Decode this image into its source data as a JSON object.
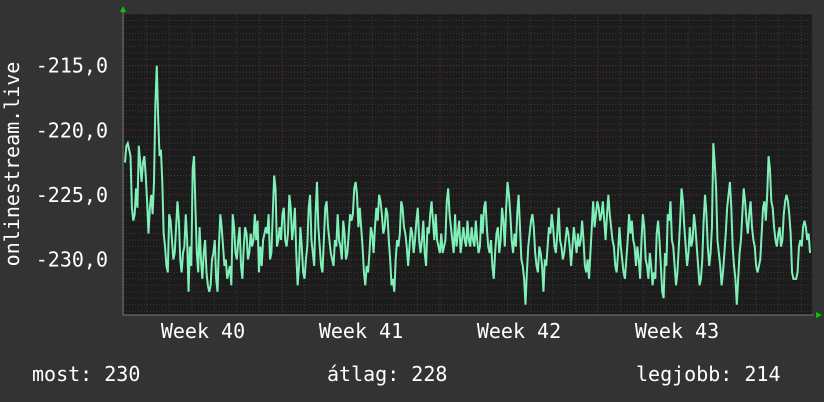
{
  "chart_data": {
    "type": "line",
    "ylabel": "onlinestream.live",
    "yticks": [
      -215.0,
      -220.0,
      -225.0,
      -230.0
    ],
    "ytick_labels": [
      "-215,0",
      "-220,0",
      "-225,0",
      "-230,0"
    ],
    "ylim": [
      -234.3,
      -211.0
    ],
    "xtick_labels": [
      "Week 40",
      "Week 41",
      "Week 42",
      "Week 43"
    ],
    "grid": true,
    "colors": {
      "line": "#7ff0b8",
      "plot_bg": "#1c1c1c",
      "grid": "#444444",
      "arrow": "#00cc00"
    },
    "series": [
      {
        "values": [
          -222.5,
          -221.2,
          -221.0,
          -221.5,
          -222.0,
          -226.0,
          -227.0,
          -226.5,
          -224.5,
          -226.0,
          -221.2,
          -222.5,
          -224.0,
          -222.5,
          -222.0,
          -223.5,
          -225.5,
          -228.0,
          -226.0,
          -225.0,
          -226.5,
          -224.0,
          -218.0,
          -215.0,
          -219.0,
          -222.0,
          -221.5,
          -224.0,
          -228.0,
          -229.0,
          -230.5,
          -231.0,
          -226.5,
          -227.0,
          -228.5,
          -230.0,
          -229.5,
          -227.5,
          -225.5,
          -227.0,
          -230.0,
          -231.0,
          -229.5,
          -229.0,
          -226.5,
          -228.5,
          -232.5,
          -229.0,
          -230.5,
          -223.0,
          -222.0,
          -226.0,
          -229.5,
          -231.0,
          -227.5,
          -230.0,
          -231.5,
          -229.5,
          -228.5,
          -231.0,
          -232.0,
          -232.5,
          -232.0,
          -230.0,
          -229.5,
          -228.5,
          -231.5,
          -232.5,
          -229.0,
          -226.5,
          -227.5,
          -229.0,
          -230.5,
          -230.0,
          -231.5,
          -231.0,
          -230.5,
          -232.0,
          -226.5,
          -227.5,
          -229.5,
          -230.0,
          -228.5,
          -227.5,
          -230.5,
          -231.5,
          -229.0,
          -227.5,
          -228.0,
          -230.0,
          -229.5,
          -228.0,
          -229.0,
          -228.5,
          -226.5,
          -228.5,
          -227.0,
          -231.0,
          -229.0,
          -230.5,
          -228.5,
          -228.0,
          -227.5,
          -228.0,
          -226.5,
          -230.0,
          -229.5,
          -226.5,
          -223.5,
          -224.5,
          -229.0,
          -228.5,
          -227.5,
          -228.5,
          -226.5,
          -226.0,
          -228.5,
          -229.0,
          -228.0,
          -225.0,
          -226.0,
          -228.5,
          -227.5,
          -226.0,
          -229.5,
          -232.0,
          -230.5,
          -227.5,
          -229.0,
          -231.0,
          -231.5,
          -230.0,
          -229.0,
          -226.0,
          -225.0,
          -228.5,
          -229.5,
          -230.5,
          -226.5,
          -224.0,
          -227.5,
          -229.0,
          -230.5,
          -231.0,
          -228.5,
          -226.0,
          -225.5,
          -227.5,
          -228.5,
          -229.5,
          -230.0,
          -230.5,
          -228.5,
          -229.0,
          -226.5,
          -228.5,
          -229.0,
          -230.0,
          -227.0,
          -228.0,
          -230.0,
          -229.5,
          -228.0,
          -226.5,
          -227.0,
          -226.5,
          -224.5,
          -224.0,
          -225.0,
          -227.5,
          -226.0,
          -227.5,
          -229.0,
          -231.0,
          -232.0,
          -230.5,
          -231.0,
          -229.5,
          -227.5,
          -228.0,
          -229.5,
          -227.5,
          -226.0,
          -227.0,
          -225.0,
          -225.5,
          -226.5,
          -228.0,
          -227.5,
          -226.0,
          -226.5,
          -228.5,
          -230.0,
          -232.0,
          -231.5,
          -232.5,
          -230.0,
          -228.5,
          -229.0,
          -228.0,
          -225.5,
          -226.0,
          -227.5,
          -228.0,
          -229.0,
          -230.5,
          -229.0,
          -227.5,
          -228.0,
          -229.5,
          -228.5,
          -227.0,
          -226.0,
          -228.5,
          -229.5,
          -228.5,
          -227.0,
          -229.5,
          -230.5,
          -227.5,
          -228.0,
          -226.5,
          -225.5,
          -227.0,
          -228.5,
          -226.5,
          -228.5,
          -229.0,
          -229.5,
          -228.0,
          -229.5,
          -229.0,
          -228.5,
          -225.5,
          -224.5,
          -226.5,
          -227.5,
          -228.5,
          -229.5,
          -226.5,
          -229.0,
          -228.0,
          -227.0,
          -229.5,
          -228.5,
          -227.5,
          -228.5,
          -229.0,
          -227.0,
          -228.5,
          -229.0,
          -227.5,
          -228.5,
          -229.0,
          -227.0,
          -228.5,
          -229.5,
          -229.0,
          -226.5,
          -228.0,
          -226.0,
          -225.5,
          -227.5,
          -229.0,
          -229.5,
          -228.5,
          -230.5,
          -231.5,
          -229.5,
          -228.0,
          -227.5,
          -229.5,
          -228.5,
          -226.0,
          -227.0,
          -229.0,
          -226.0,
          -224.0,
          -225.0,
          -226.5,
          -228.5,
          -229.5,
          -228.0,
          -229.0,
          -226.5,
          -225.0,
          -227.5,
          -230.0,
          -230.5,
          -231.5,
          -233.5,
          -231.0,
          -229.0,
          -228.0,
          -227.0,
          -226.5,
          -227.5,
          -229.5,
          -230.5,
          -231.0,
          -229.0,
          -229.5,
          -230.5,
          -232.5,
          -230.0,
          -230.5,
          -229.0,
          -227.5,
          -228.0,
          -226.5,
          -227.5,
          -229.0,
          -229.5,
          -228.0,
          -226.0,
          -228.5,
          -229.0,
          -230.0,
          -229.5,
          -228.5,
          -227.5,
          -228.0,
          -229.0,
          -230.5,
          -229.0,
          -227.5,
          -228.5,
          -229.5,
          -228.0,
          -229.0,
          -228.5,
          -227.0,
          -228.5,
          -230.5,
          -231.0,
          -230.0,
          -231.5,
          -229.5,
          -227.5,
          -225.5,
          -227.5,
          -226.5,
          -225.5,
          -226.0,
          -227.0,
          -226.5,
          -225.5,
          -227.0,
          -228.5,
          -226.5,
          -225.0,
          -226.5,
          -227.5,
          -228.5,
          -229.0,
          -230.5,
          -231.0,
          -229.5,
          -227.5,
          -229.0,
          -230.0,
          -231.0,
          -231.5,
          -230.0,
          -228.5,
          -226.5,
          -228.0,
          -227.0,
          -228.5,
          -229.0,
          -230.5,
          -229.0,
          -230.0,
          -231.5,
          -228.5,
          -226.5,
          -227.5,
          -230.0,
          -230.5,
          -231.5,
          -229.5,
          -230.5,
          -232.0,
          -231.0,
          -231.5,
          -228.0,
          -227.0,
          -228.5,
          -230.5,
          -232.5,
          -233.0,
          -229.5,
          -230.5,
          -226.5,
          -227.0,
          -225.5,
          -228.5,
          -229.0,
          -230.5,
          -232.0,
          -231.0,
          -229.0,
          -227.0,
          -224.5,
          -225.5,
          -227.5,
          -229.0,
          -230.5,
          -229.5,
          -227.5,
          -229.0,
          -228.5,
          -226.5,
          -227.5,
          -229.0,
          -230.5,
          -232.0,
          -231.5,
          -230.0,
          -227.0,
          -225.0,
          -226.5,
          -229.0,
          -230.5,
          -229.5,
          -227.5,
          -221.0,
          -222.5,
          -224.5,
          -228.5,
          -229.5,
          -230.5,
          -232.0,
          -231.0,
          -229.5,
          -228.0,
          -226.0,
          -225.0,
          -224.0,
          -226.0,
          -229.0,
          -230.5,
          -231.5,
          -233.5,
          -231.5,
          -229.5,
          -228.5,
          -226.5,
          -224.5,
          -225.5,
          -227.0,
          -228.0,
          -226.5,
          -225.5,
          -227.5,
          -228.5,
          -229.0,
          -230.5,
          -231.0,
          -230.5,
          -230.0,
          -228.0,
          -226.0,
          -225.5,
          -227.0,
          -225.0,
          -222.0,
          -223.0,
          -225.5,
          -226.0,
          -227.5,
          -228.5,
          -229.0,
          -228.0,
          -227.5,
          -229.0,
          -228.5,
          -226.5,
          -225.5,
          -225.0,
          -225.5,
          -226.5,
          -228.0,
          -231.0,
          -231.5,
          -231.5,
          -231.5,
          -231.0,
          -229.0,
          -228.5,
          -229.0,
          -227.5,
          -227.0,
          -227.5,
          -228.5,
          -228.0,
          -229.5
        ],
        "ylabels": [],
        "color": "#7ff0b8"
      }
    ]
  },
  "stats": {
    "current": "most: 230",
    "average": "átlag: 228",
    "best": "legjobb: 214"
  }
}
